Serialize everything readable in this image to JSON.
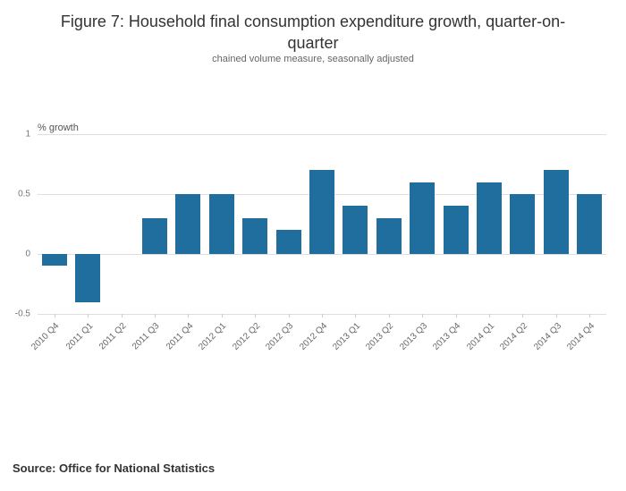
{
  "title": "Figure 7: Household final consumption expenditure growth, quarter-on-quarter",
  "subtitle": "chained volume measure, seasonally adjusted",
  "source": "Source: Office for National Statistics",
  "chart_data": {
    "type": "bar",
    "title": "Figure 7: Household final consumption expenditure growth, quarter-on-quarter",
    "subtitle": "chained volume measure, seasonally adjusted",
    "ylabel": "% growth",
    "xlabel": "",
    "categories": [
      "2010 Q4",
      "2011 Q1",
      "2011 Q2",
      "2011 Q3",
      "2011 Q4",
      "2012 Q1",
      "2012 Q2",
      "2012 Q3",
      "2012 Q4",
      "2013 Q1",
      "2013 Q2",
      "2013 Q3",
      "2013 Q4",
      "2014 Q1",
      "2014 Q2",
      "2014 Q3",
      "2014 Q4"
    ],
    "values": [
      -0.1,
      -0.4,
      0,
      0.3,
      0.5,
      0.5,
      0.3,
      0.2,
      0.7,
      0.4,
      0.3,
      0.6,
      0.4,
      0.6,
      0.5,
      0.7,
      0.5
    ],
    "ylim": [
      -0.5,
      1
    ],
    "yticks": [
      1,
      0.5,
      0,
      -0.5
    ],
    "ytick_labels": [
      "1",
      "0.5",
      "0",
      "-0.5"
    ],
    "bar_color": "#1f6e9e",
    "grid": true,
    "legend": "none"
  }
}
